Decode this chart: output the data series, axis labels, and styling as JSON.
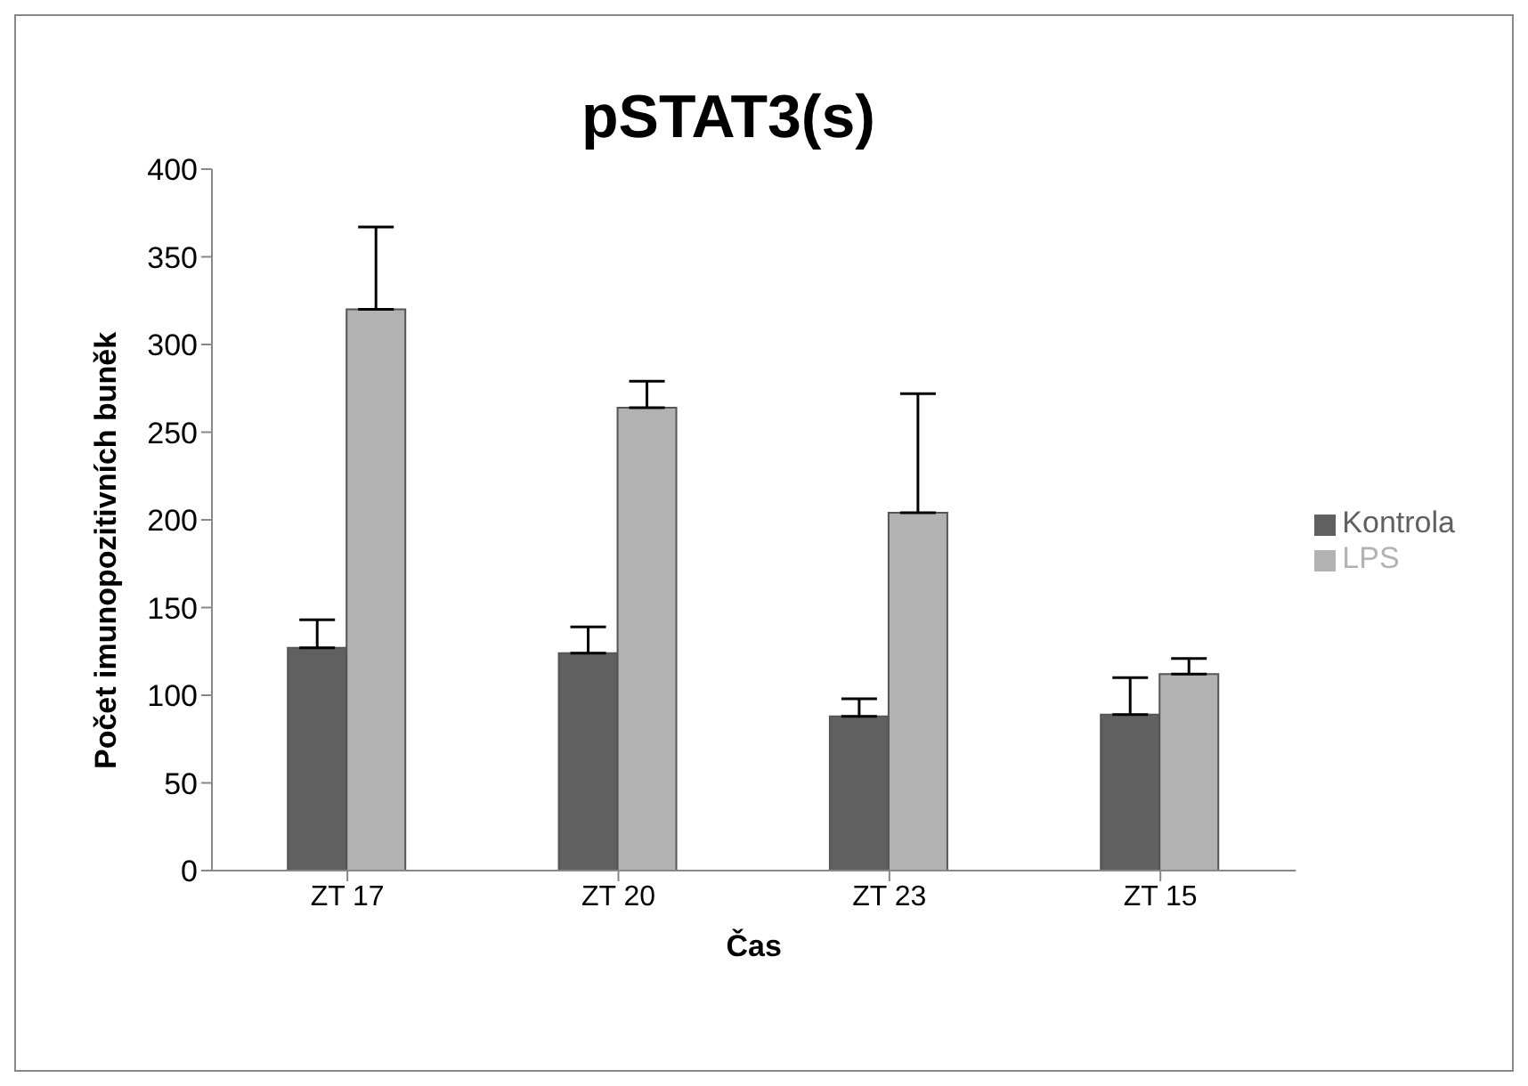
{
  "chart_data": {
    "type": "bar",
    "title": "pSTAT3(s)",
    "xlabel": "Čas",
    "ylabel": "Počet imunopozitivních buněk",
    "categories": [
      "ZT 17",
      "ZT 20",
      "ZT 23",
      "ZT 15"
    ],
    "series": [
      {
        "name": "Kontrola",
        "color": "#606060",
        "values": [
          127,
          124,
          88,
          89
        ],
        "errors": [
          [
            127,
            143
          ],
          [
            124,
            139
          ],
          [
            88,
            98
          ],
          [
            89,
            110
          ]
        ]
      },
      {
        "name": "LPS",
        "color": "#b2b2b2",
        "values": [
          320,
          264,
          204,
          112
        ],
        "errors": [
          [
            320,
            367
          ],
          [
            264,
            279
          ],
          [
            204,
            272
          ],
          [
            112,
            121
          ]
        ]
      }
    ],
    "ylim": [
      0,
      400
    ],
    "yticks": [
      0,
      50,
      100,
      150,
      200,
      250,
      300,
      350,
      400
    ],
    "grid": false,
    "legend": "right"
  }
}
